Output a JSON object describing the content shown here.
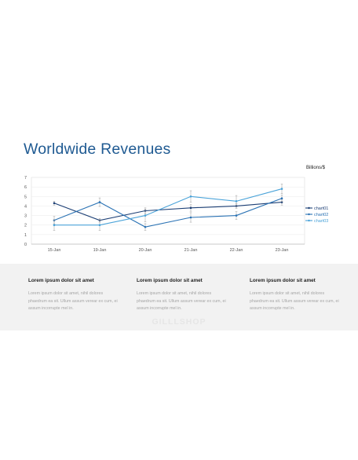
{
  "slide": {
    "title": "Worldwide Revenues",
    "watermark": "GILLLSHOP"
  },
  "chart_data": {
    "type": "line",
    "unit_label": "Billions/$",
    "categories": [
      "15-Jan",
      "19-Jan",
      "20-Jan",
      "21-Jan",
      "22-Jan",
      "23-Jan"
    ],
    "ylim": [
      0,
      7
    ],
    "yticks": [
      0,
      1,
      2,
      3,
      4,
      5,
      6,
      7
    ],
    "grid": true,
    "legend_position": "right",
    "series": [
      {
        "name": "chart01",
        "color": "#1c3f75",
        "values": [
          4.3,
          2.5,
          3.5,
          3.8,
          4.0,
          4.4
        ],
        "errors": [
          0.2,
          0.2,
          0.3,
          0.35,
          0.25,
          0.3
        ]
      },
      {
        "name": "chart02",
        "color": "#2a72b4",
        "values": [
          2.5,
          4.4,
          1.8,
          2.8,
          3.0,
          4.8
        ],
        "errors": [
          0.4,
          0.45,
          0.35,
          0.5,
          0.4,
          0.35
        ]
      },
      {
        "name": "chart03",
        "color": "#4aa3d9",
        "values": [
          2.0,
          2.0,
          3.0,
          5.0,
          4.5,
          5.8
        ],
        "errors": [
          0.55,
          0.55,
          0.65,
          0.6,
          0.6,
          0.5
        ]
      }
    ]
  },
  "columns": [
    {
      "heading": "Lorem ipsum dolor sit amet",
      "body": "Lorem ipsum dolor sit amet, nihil dolores phaedrum ea sit. Ullum assum verear ex cum, ei assum incorrupte mel in."
    },
    {
      "heading": "Lorem ipsum dolor sit amet",
      "body": "Lorem ipsum dolor sit amet, nihil dolores phaedrum ea sit. Ullum assum verear ex cum, ei assum incorrupte mel in."
    },
    {
      "heading": "Lorem ipsum dolor sit amet",
      "body": "Lorem ipsum dolor sit amet, nihil dolores phaedrum ea sit. Ullum assum verear ex cum, ei assum incorrupte mel in."
    }
  ]
}
